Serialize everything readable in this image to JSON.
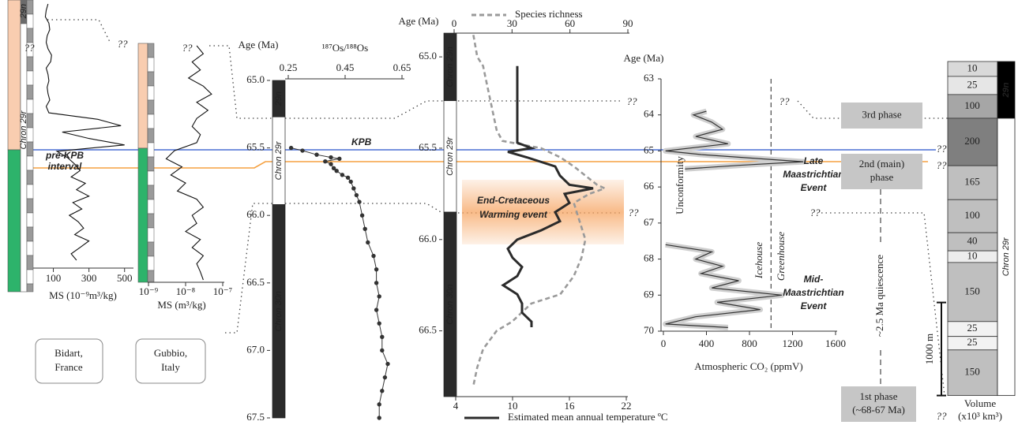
{
  "chart_data": [
    {
      "type": "line",
      "location": [
        "Bidart,",
        "France"
      ],
      "xlabel": "MS (10⁻⁹m³/kg)",
      "xlim": [
        0,
        550
      ],
      "xticks": [
        100,
        300,
        500
      ],
      "color": "#111111",
      "values": [
        70,
        60,
        55,
        75,
        80,
        65,
        60,
        70,
        90,
        85,
        60,
        70,
        75,
        65,
        70,
        80,
        60,
        75,
        350,
        480,
        150,
        300,
        500,
        120,
        180,
        220,
        250,
        200,
        280,
        230,
        300,
        210,
        260,
        190,
        240,
        270,
        220,
        300,
        250,
        200,
        230
      ],
      "chron_labels": [
        "29n",
        "Chron 29r"
      ],
      "annotation": [
        "pre-KPB",
        "interval"
      ]
    },
    {
      "type": "line",
      "location": [
        "Gubbio,",
        "Italy"
      ],
      "xlabel": "MS (m³/kg)",
      "xscale": "log",
      "xlim": [
        1e-09,
        1e-07
      ],
      "xticks": [
        {
          "value": 1e-09,
          "label": "10⁻⁹"
        },
        {
          "value": 1e-08,
          "label": "10⁻⁸"
        },
        {
          "value": 1e-07,
          "label": "10⁻⁷"
        }
      ],
      "color": "#111111",
      "values": [
        2e-08,
        3e-08,
        1.5e-08,
        2.5e-08,
        1.2e-08,
        3e-08,
        5e-08,
        2e-08,
        4e-08,
        2e-08,
        1.5e-08,
        2.5e-08,
        2e-08,
        5e-09,
        3e-09,
        8e-09,
        4e-09,
        1e-08,
        6e-09,
        2e-08,
        3e-08,
        1.5e-08,
        2e-08,
        1e-08,
        2.5e-08,
        1.5e-08,
        3e-08,
        2e-08,
        2.5e-08,
        3e-08
      ]
    },
    {
      "type": "scatter",
      "ylabel": "Age (Ma)",
      "xlabel": "¹⁸⁷Os/¹⁸⁸Os",
      "ylim": [
        65,
        67.5
      ],
      "yticks": [
        {
          "value": 65,
          "label": "65.0"
        },
        65.5,
        {
          "value": 66,
          "label": "66.0"
        },
        66.5,
        {
          "value": 67,
          "label": "67.0"
        },
        67.5
      ],
      "xlim": [
        0.25,
        0.65
      ],
      "xticks": [
        0.25,
        0.45,
        0.65
      ],
      "color": "#333333",
      "x": [
        65.5,
        65.52,
        65.55,
        65.57,
        65.58,
        65.6,
        65.62,
        65.65,
        65.67,
        65.7,
        65.72,
        65.75,
        65.8,
        65.85,
        65.9,
        66.0,
        66.1,
        66.2,
        66.3,
        66.4,
        66.5,
        66.6,
        66.7,
        66.8,
        66.9,
        67.0,
        67.1,
        67.2,
        67.3,
        67.4,
        67.5
      ],
      "values": [
        0.26,
        0.3,
        0.35,
        0.4,
        0.43,
        0.38,
        0.4,
        0.41,
        0.42,
        0.44,
        0.46,
        0.47,
        0.48,
        0.49,
        0.5,
        0.51,
        0.52,
        0.53,
        0.55,
        0.56,
        0.56,
        0.57,
        0.56,
        0.57,
        0.58,
        0.58,
        0.6,
        0.59,
        0.58,
        0.57,
        0.57
      ],
      "chrons": [
        {
          "label": "29n",
          "from": 65,
          "to": 65.27,
          "color": "#2b2b2b"
        },
        {
          "label": "Chron 29r",
          "from": 65.27,
          "to": 65.92,
          "color": "#ffffff"
        },
        {
          "label": "Chron 30n",
          "from": 65.92,
          "to": 67.5,
          "color": "#2b2b2b"
        }
      ],
      "annotation": "KPB"
    },
    {
      "type": "line",
      "ylabel": "Age (Ma)",
      "ylim": [
        64.87,
        66.86
      ],
      "yticks": [
        {
          "value": 65,
          "label": "65.0"
        },
        65.5,
        {
          "value": 66,
          "label": "66.0"
        },
        66.5
      ],
      "xlim": [
        4,
        22
      ],
      "xticks": [
        4,
        10,
        16,
        22
      ],
      "x2lim": [
        0,
        90
      ],
      "x2ticks": [
        0,
        30,
        60,
        90
      ],
      "series": [
        {
          "name": "Species richness",
          "color": "#9a9a9a",
          "axis": "x2",
          "linestyle": "dashed",
          "x": [
            64.88,
            65.0,
            65.05,
            65.1,
            65.2,
            65.3,
            65.4,
            65.46,
            65.5,
            65.55,
            65.6,
            65.65,
            65.7,
            65.72,
            65.75,
            65.8,
            65.9,
            66.0,
            66.1,
            66.2,
            66.3,
            66.35,
            66.45,
            66.5,
            66.6,
            66.7,
            66.8
          ],
          "values": [
            10,
            12,
            15,
            16,
            18,
            20,
            22,
            25,
            45,
            55,
            62,
            68,
            74,
            78,
            70,
            62,
            65,
            68,
            66,
            62,
            55,
            40,
            30,
            22,
            15,
            12,
            10
          ]
        },
        {
          "name": "Estimated mean annual temperature ºC",
          "color": "#2b2b2b",
          "axis": "x",
          "linestyle": "solid",
          "x": [
            65.05,
            65.2,
            65.4,
            65.47,
            65.5,
            65.52,
            65.55,
            65.6,
            65.65,
            65.7,
            65.72,
            65.75,
            65.8,
            65.85,
            65.9,
            65.95,
            66.0,
            66.05,
            66.1,
            66.15,
            66.2,
            66.25,
            66.3,
            66.35,
            66.4,
            66.45,
            66.48
          ],
          "values": [
            10.5,
            10.5,
            10.5,
            10.5,
            12,
            9.5,
            11.5,
            14.5,
            15,
            16,
            18.5,
            15.5,
            16,
            14.5,
            15,
            13,
            10.5,
            9.5,
            10,
            11,
            10.5,
            9,
            10.5,
            11,
            11,
            12,
            12
          ]
        }
      ],
      "chrons": [
        {
          "label": "Chron 29n",
          "from": 64.87,
          "to": 65.24,
          "color": "#2b2b2b"
        },
        {
          "label": "Chron 29r",
          "from": 65.24,
          "to": 65.85,
          "color": "#ffffff"
        },
        {
          "label": "Chron 30n",
          "from": 65.85,
          "to": 66.86,
          "color": "#2b2b2b"
        }
      ],
      "annotation": [
        "End-Cretaceous",
        "Warming event"
      ]
    },
    {
      "type": "line",
      "ylabel": "Age (Ma)",
      "ylim": [
        63,
        70
      ],
      "yticks": [
        63,
        64,
        65,
        66,
        67,
        68,
        69,
        70
      ],
      "xlabel": "Atmospheric CO₂ (ppmV)",
      "xlim": [
        0,
        1600
      ],
      "xticks": [
        0,
        400,
        800,
        1200,
        1600
      ],
      "color": "#333333",
      "x": [
        63.9,
        64.0,
        64.2,
        64.4,
        64.6,
        64.8,
        65.0,
        65.1,
        65.3,
        65.4,
        65.5,
        66.5,
        67.6,
        67.8,
        68.0,
        68.2,
        68.4,
        68.6,
        68.8,
        69.0,
        69.2,
        69.4,
        69.6,
        69.8,
        69.9
      ],
      "values": [
        400,
        280,
        450,
        550,
        300,
        600,
        20,
        350,
        1300,
        700,
        200,
        null,
        20,
        450,
        300,
        550,
        350,
        700,
        450,
        1100,
        500,
        900,
        300,
        20,
        600
      ],
      "threshold": 1000,
      "threshold_labels": [
        "Icehouse",
        "Greenhouse"
      ],
      "unconformity": "Unconformity",
      "events": [
        [
          "Late",
          "Maastrichtian",
          "Event"
        ],
        [
          "Mid-",
          "Maastrichtian",
          "Event"
        ]
      ]
    },
    {
      "type": "column",
      "xlabel": [
        "Volume",
        "(x10³ km³)"
      ],
      "values": [
        10,
        25,
        100,
        200,
        165,
        100,
        40,
        10,
        150,
        25,
        25,
        150
      ],
      "thickness_m": [
        160,
        195,
        255,
        510,
        365,
        355,
        195,
        125,
        635,
        160,
        145,
        490
      ],
      "colors": [
        "#d9d9d9",
        "#e6e6e6",
        "#a6a6a6",
        "#7f7f7f",
        "#bfbfbf",
        "#bfbfbf",
        "#bfbfbf",
        "#ededed",
        "#bfbfbf",
        "#f2f2f2",
        "#f2f2f2",
        "#bfbfbf"
      ],
      "scale_bar": {
        "value": 1000,
        "label": "1000 m"
      },
      "chrons": [
        {
          "label": "29n",
          "from": 0,
          "to": 610,
          "color": "#000000"
        },
        {
          "label": "Chron 29r",
          "from": 610,
          "to": 3590,
          "color": "#ffffff"
        }
      ],
      "phases": [
        [
          "3rd phase"
        ],
        [
          "2nd (main)",
          "phase"
        ],
        [
          "1st phase",
          "(~68-67 Ma)"
        ]
      ],
      "quiescence": "~2.5 Ma quiescence"
    }
  ],
  "question_marks": [
    "??",
    "??",
    "??",
    "??",
    "??",
    "??",
    "??",
    "??",
    "??",
    "??"
  ]
}
